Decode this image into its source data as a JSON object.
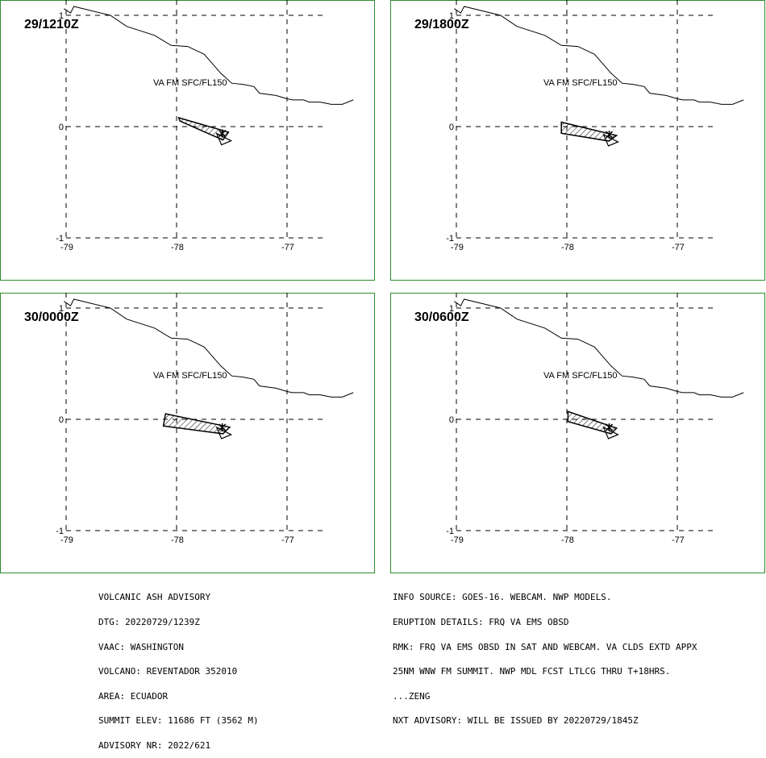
{
  "panels": [
    {
      "time": "29/1210Z",
      "va_label": "VA FM SFC/FL150",
      "ash_polygon": [
        [
          -77.97,
          0.05
        ],
        [
          -77.58,
          -0.12
        ],
        [
          -77.53,
          -0.05
        ],
        [
          -77.98,
          0.08
        ]
      ],
      "arrow_tip": [
        -77.55,
        -0.12
      ]
    },
    {
      "time": "29/1800Z",
      "va_label": "VA FM SFC/FL150",
      "ash_polygon": [
        [
          -78.05,
          -0.06
        ],
        [
          -77.62,
          -0.13
        ],
        [
          -77.55,
          -0.08
        ],
        [
          -78.05,
          0.04
        ]
      ],
      "arrow_tip": [
        -77.58,
        -0.13
      ]
    },
    {
      "time": "30/0000Z",
      "va_label": "VA FM SFC/FL150",
      "ash_polygon": [
        [
          -78.12,
          -0.06
        ],
        [
          -77.58,
          -0.13
        ],
        [
          -77.52,
          -0.07
        ],
        [
          -78.1,
          0.05
        ]
      ],
      "arrow_tip": [
        -77.55,
        -0.13
      ]
    },
    {
      "time": "30/0600Z",
      "va_label": "VA FM SFC/FL150",
      "ash_polygon": [
        [
          -77.99,
          -0.02
        ],
        [
          -77.6,
          -0.13
        ],
        [
          -77.55,
          -0.08
        ],
        [
          -77.99,
          0.07
        ]
      ],
      "arrow_tip": [
        -77.58,
        -0.13
      ]
    }
  ],
  "axes": {
    "x_ticks": [
      "-79",
      "-78",
      "-77"
    ],
    "y_ticks": [
      "1",
      "0",
      "-1"
    ]
  },
  "coastline": [
    [
      -79.02,
      1.06
    ],
    [
      -78.96,
      1.02
    ],
    [
      -78.93,
      1.08
    ],
    [
      -78.6,
      1.0
    ],
    [
      -78.45,
      0.9
    ],
    [
      -78.2,
      0.82
    ],
    [
      -78.05,
      0.73
    ],
    [
      -77.9,
      0.72
    ],
    [
      -77.75,
      0.65
    ],
    [
      -77.6,
      0.48
    ],
    [
      -77.5,
      0.39
    ],
    [
      -77.4,
      0.38
    ],
    [
      -77.3,
      0.36
    ],
    [
      -77.25,
      0.3
    ],
    [
      -77.1,
      0.28
    ],
    [
      -77.0,
      0.25
    ],
    [
      -76.95,
      0.24
    ],
    [
      -76.85,
      0.24
    ],
    [
      -76.8,
      0.22
    ],
    [
      -76.7,
      0.22
    ],
    [
      -76.6,
      0.2
    ],
    [
      -76.5,
      0.2
    ],
    [
      -76.4,
      0.24
    ]
  ],
  "footer_left": [
    "VOLCANIC ASH ADVISORY",
    "DTG: 20220729/1239Z",
    "VAAC: WASHINGTON",
    "VOLCANO: REVENTADOR 352010",
    "AREA: ECUADOR",
    "SUMMIT ELEV: 11686 FT (3562 M)",
    "ADVISORY NR: 2022/621"
  ],
  "footer_right": [
    "INFO SOURCE: GOES-16. WEBCAM. NWP MODELS.",
    "ERUPTION DETAILS: FRQ VA EMS OBSD",
    "RMK: FRQ VA EMS OBSD IN SAT AND WEBCAM. VA CLDS EXTD APPX",
    "25NM WNW FM SUMMIT. NWP MDL FCST LTLCG THRU T+18HRS.",
    "...ZENG",
    "NXT ADVISORY: WILL BE ISSUED BY 20220729/1845Z"
  ],
  "colors": {
    "frame": "#2e8b2e",
    "line": "#000000"
  }
}
